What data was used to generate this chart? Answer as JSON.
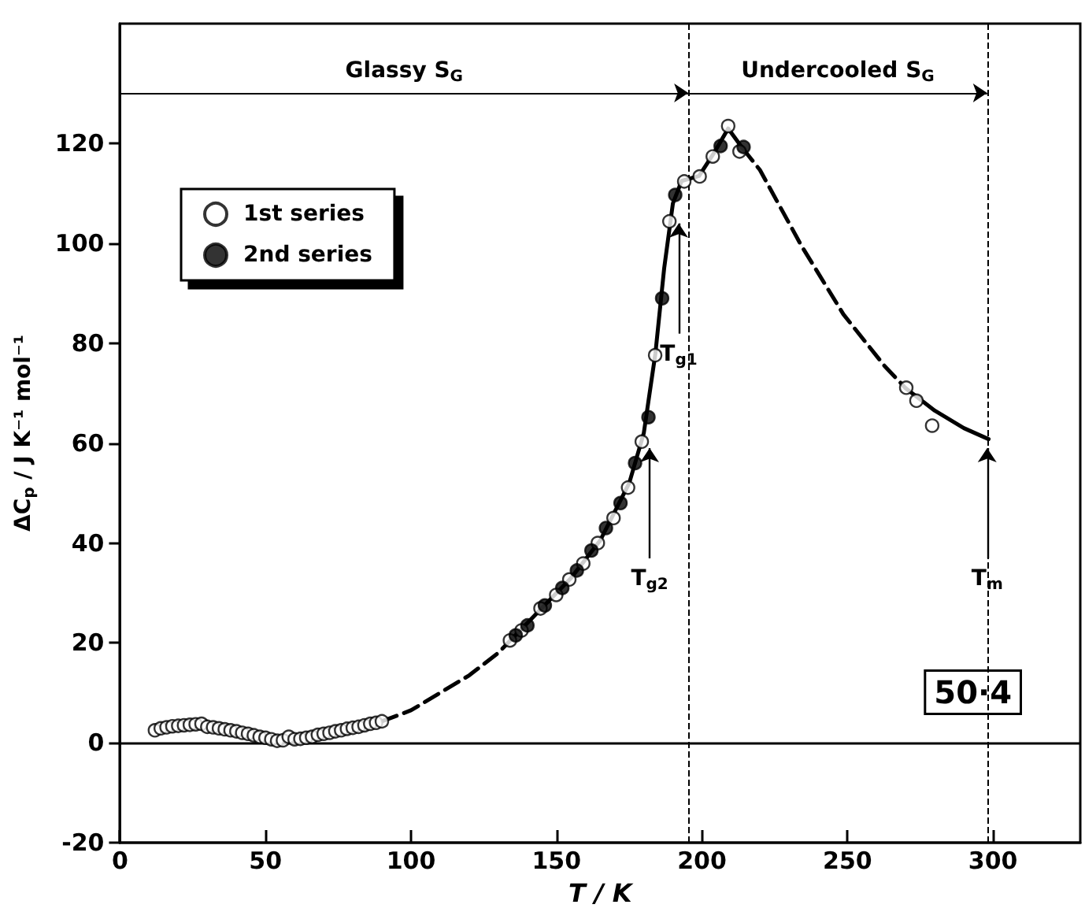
{
  "chart_data": {
    "type": "scatter",
    "xlabel": "T / K",
    "ylabel": "ΔC$_{p}$ / J K⁻¹ mol⁻¹",
    "xlim": [
      0,
      330
    ],
    "xticks": [
      0,
      50,
      100,
      150,
      200,
      250,
      300
    ],
    "ylim": [
      -20,
      144
    ],
    "yticks": [
      -20,
      0,
      20,
      40,
      60,
      80,
      100,
      120
    ],
    "legend": "top left",
    "marker": "circle",
    "series": [
      {
        "name": "1st series",
        "color": "#ffffff",
        "x": [
          12,
          14,
          16,
          18,
          20,
          22,
          24,
          26,
          28,
          30,
          32,
          34,
          36,
          38,
          40,
          42,
          44,
          46,
          48,
          50,
          52,
          54,
          56,
          58,
          60,
          62,
          64,
          66,
          68,
          70,
          72,
          74,
          76,
          78,
          80,
          82,
          84,
          86,
          88,
          90,
          134,
          138,
          144.5,
          149.9,
          154.4,
          159.2,
          164.2,
          169.6,
          174.6,
          179.3,
          183.9,
          188.8,
          193.9,
          199.2,
          203.7,
          209,
          212.9,
          270.2,
          273.7,
          279.1
        ],
        "values": [
          2.5,
          2.9,
          3.1,
          3.3,
          3.4,
          3.5,
          3.6,
          3.7,
          3.8,
          3.2,
          3.1,
          2.9,
          2.7,
          2.5,
          2.3,
          2.0,
          1.8,
          1.5,
          1.2,
          1.0,
          0.7,
          0.4,
          0.5,
          1.2,
          0.7,
          0.8,
          1.0,
          1.2,
          1.6,
          1.8,
          2.0,
          2.3,
          2.5,
          2.8,
          3.0,
          3.2,
          3.5,
          3.8,
          4.0,
          4.3,
          20.5,
          22.5,
          26.9,
          29.6,
          32.7,
          35.9,
          40,
          45,
          51.1,
          60.3,
          77.6,
          104.4,
          112.4,
          113.4,
          117.4,
          123.5,
          118.4,
          71.1,
          68.5,
          63.5
        ]
      },
      {
        "name": "2nd series",
        "color": "#000000",
        "x": [
          136,
          140,
          146,
          152,
          157,
          162,
          167,
          172,
          177,
          181.6,
          186.3,
          190.8,
          206.4,
          214.3
        ],
        "values": [
          21.5,
          23.5,
          27.5,
          31,
          34.5,
          38.5,
          43,
          48,
          56,
          65.2,
          89,
          109.7,
          119.5,
          119.3
        ]
      },
      {
        "type": "line",
        "color": "#000000",
        "marker": "none",
        "line_style": "dashed",
        "x": [
          90,
          100,
          110,
          120,
          130,
          135
        ],
        "values": [
          4.3,
          6.5,
          10,
          13.5,
          18,
          21
        ]
      },
      {
        "type": "line",
        "color": "#000000",
        "marker": "none",
        "line_style": "solid",
        "x": [
          135,
          145,
          155,
          165,
          175,
          180,
          184,
          187,
          190,
          193,
          199,
          204,
          209,
          214
        ],
        "values": [
          21,
          27,
          33,
          40.5,
          52,
          62,
          78,
          95,
          108,
          112.5,
          113.5,
          118,
          123,
          119
        ]
      },
      {
        "type": "line",
        "color": "#000000",
        "marker": "none",
        "line_style": "dashed",
        "x": [
          214,
          219.9,
          234.2,
          248.6,
          262.8,
          270
        ],
        "values": [
          119,
          114.7,
          99.5,
          85.8,
          75.4,
          71
        ]
      },
      {
        "type": "line",
        "color": "#000000",
        "marker": "none",
        "line_style": "solid",
        "x": [
          270,
          280,
          290,
          298.5
        ],
        "values": [
          71,
          66.5,
          63,
          60.8
        ]
      }
    ],
    "ref_lines": [
      {
        "axis": "y",
        "value": 0,
        "line_style": "solid"
      },
      {
        "axis": "x",
        "value": 195.3,
        "line_style": "dashed"
      },
      {
        "axis": "x",
        "value": 298,
        "line_style": "dashed"
      }
    ],
    "annotations": [
      {
        "text": "T$_{g1}$",
        "x": 192,
        "y": 104
      },
      {
        "text": "T$_{g2}$",
        "x": 182,
        "y": 59
      },
      {
        "text": "T$_{m}$",
        "x": 298,
        "y": 59
      },
      "Glassy S$_{G}$",
      "Undercooled S$_{G}$",
      "50·4"
    ]
  }
}
